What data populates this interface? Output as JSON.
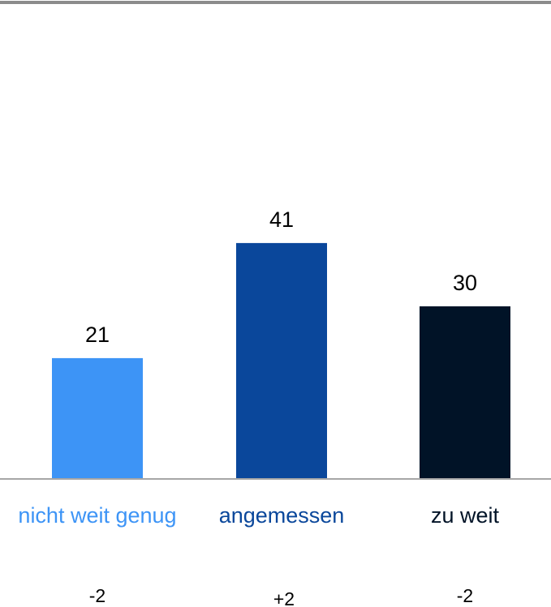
{
  "chart_data": {
    "type": "bar",
    "categories": [
      "nicht weit genug",
      "angemessen",
      "zu weit"
    ],
    "values": [
      21,
      41,
      30
    ],
    "colors": [
      "#3d94f6",
      "#0a479b",
      "#011327"
    ],
    "annotations": [
      "-2",
      "+2",
      "-2"
    ],
    "ylim": [
      0,
      80
    ]
  }
}
